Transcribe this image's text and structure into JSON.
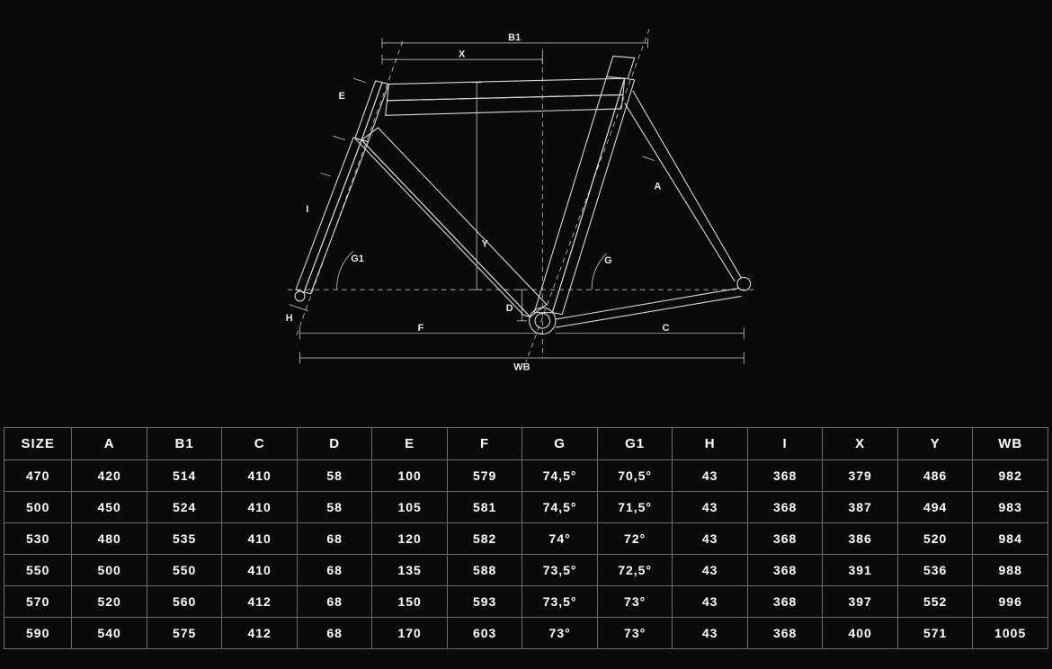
{
  "colors": {
    "background": "#0a0a0a",
    "line": "#d9d9d9",
    "text": "#ffffff",
    "tableBorder": "#6b6b6b"
  },
  "diagram": {
    "labels": [
      "B1",
      "X",
      "E",
      "I",
      "G1",
      "H",
      "F",
      "Y",
      "D",
      "WB",
      "G",
      "A",
      "C"
    ],
    "stroke_width_main": 1.2,
    "stroke_width_dim": 0.8,
    "label_fontsize": 12,
    "label_color": "#e6e6e6"
  },
  "geometryTable": {
    "columns": [
      "SIZE",
      "A",
      "B1",
      "C",
      "D",
      "E",
      "F",
      "G",
      "G1",
      "H",
      "I",
      "X",
      "Y",
      "WB"
    ],
    "rows": [
      [
        "470",
        "420",
        "514",
        "410",
        "58",
        "100",
        "579",
        "74,5°",
        "70,5°",
        "43",
        "368",
        "379",
        "486",
        "982"
      ],
      [
        "500",
        "450",
        "524",
        "410",
        "58",
        "105",
        "581",
        "74,5°",
        "71,5°",
        "43",
        "368",
        "387",
        "494",
        "983"
      ],
      [
        "530",
        "480",
        "535",
        "410",
        "68",
        "120",
        "582",
        "74°",
        "72°",
        "43",
        "368",
        "386",
        "520",
        "984"
      ],
      [
        "550",
        "500",
        "550",
        "410",
        "68",
        "135",
        "588",
        "73,5°",
        "72,5°",
        "43",
        "368",
        "391",
        "536",
        "988"
      ],
      [
        "570",
        "520",
        "560",
        "412",
        "68",
        "150",
        "593",
        "73,5°",
        "73°",
        "43",
        "368",
        "397",
        "552",
        "996"
      ],
      [
        "590",
        "540",
        "575",
        "412",
        "68",
        "170",
        "603",
        "73°",
        "73°",
        "43",
        "368",
        "400",
        "571",
        "1005"
      ]
    ]
  }
}
